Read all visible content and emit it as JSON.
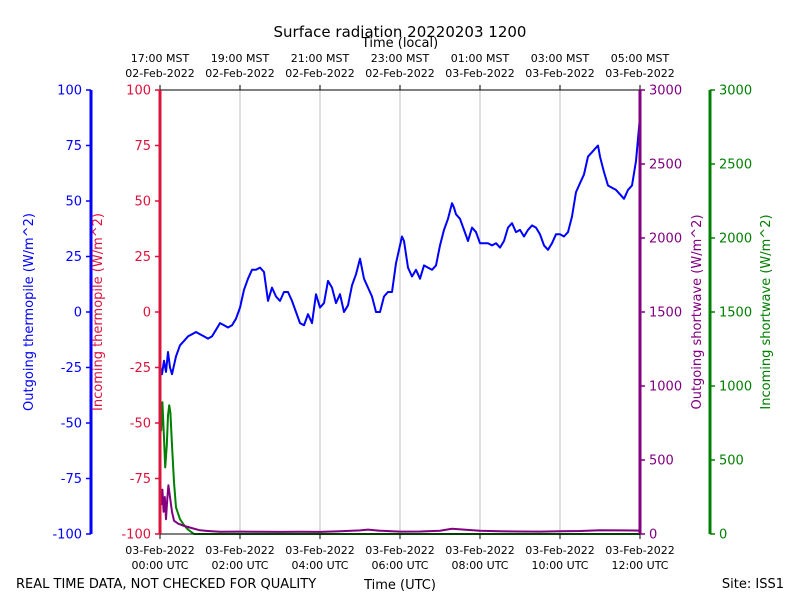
{
  "chart_data": {
    "type": "line",
    "title": "Surface radiation 20220203 1200",
    "top_xlabel": "Time (local)",
    "xlabel": "Time (UTC)",
    "footer_left": "REAL TIME DATA, NOT CHECKED FOR QUALITY",
    "footer_right": "Site: ISS1",
    "xlim_hours_utc": [
      0,
      12
    ],
    "x_ticks_bottom": [
      {
        "h": 0,
        "l1": "03-Feb-2022",
        "l2": "00:00 UTC"
      },
      {
        "h": 2,
        "l1": "03-Feb-2022",
        "l2": "02:00 UTC"
      },
      {
        "h": 4,
        "l1": "03-Feb-2022",
        "l2": "04:00 UTC"
      },
      {
        "h": 6,
        "l1": "03-Feb-2022",
        "l2": "06:00 UTC"
      },
      {
        "h": 8,
        "l1": "03-Feb-2022",
        "l2": "08:00 UTC"
      },
      {
        "h": 10,
        "l1": "03-Feb-2022",
        "l2": "10:00 UTC"
      },
      {
        "h": 12,
        "l1": "03-Feb-2022",
        "l2": "12:00 UTC"
      }
    ],
    "x_ticks_top": [
      {
        "h": 0,
        "l1": "17:00 MST",
        "l2": "02-Feb-2022"
      },
      {
        "h": 2,
        "l1": "19:00 MST",
        "l2": "02-Feb-2022"
      },
      {
        "h": 4,
        "l1": "21:00 MST",
        "l2": "02-Feb-2022"
      },
      {
        "h": 6,
        "l1": "23:00 MST",
        "l2": "02-Feb-2022"
      },
      {
        "h": 8,
        "l1": "01:00 MST",
        "l2": "03-Feb-2022"
      },
      {
        "h": 10,
        "l1": "03:00 MST",
        "l2": "03-Feb-2022"
      },
      {
        "h": 12,
        "l1": "05:00 MST",
        "l2": "03-Feb-2022"
      }
    ],
    "axes": {
      "outgoing_thermopile": {
        "label": "Outgoing thermopile (W/m^2)",
        "color": "#0000ff",
        "ylim": [
          -100,
          100
        ],
        "ticks": [
          -100,
          -75,
          -50,
          -25,
          0,
          25,
          50,
          75,
          100
        ]
      },
      "incoming_thermopile": {
        "label": "Incoming thermopile (W/m^2)",
        "color": "#dc143c",
        "ylim": [
          -100,
          100
        ],
        "ticks": [
          -100,
          -75,
          -50,
          -25,
          0,
          25,
          50,
          75,
          100
        ]
      },
      "outgoing_shortwave": {
        "label": "Outgoing shortwave (W/m^2)",
        "color": "#800080",
        "ylim": [
          0,
          3000
        ],
        "ticks": [
          0,
          500,
          1000,
          1500,
          2000,
          2500,
          3000
        ]
      },
      "incoming_shortwave": {
        "label": "Incoming shortwave (W/m^2)",
        "color": "#008000",
        "ylim": [
          0,
          3000
        ],
        "ticks": [
          0,
          500,
          1000,
          1500,
          2000,
          2500,
          3000
        ]
      }
    },
    "series": [
      {
        "name": "Outgoing thermopile",
        "axis": "outgoing_thermopile",
        "color": "#0000ff",
        "points": [
          [
            0.0,
            -24
          ],
          [
            0.05,
            -28
          ],
          [
            0.1,
            -22
          ],
          [
            0.15,
            -27
          ],
          [
            0.2,
            -18
          ],
          [
            0.25,
            -25
          ],
          [
            0.3,
            -28
          ],
          [
            0.4,
            -20
          ],
          [
            0.5,
            -15
          ],
          [
            0.6,
            -13
          ],
          [
            0.7,
            -11
          ],
          [
            0.8,
            -10
          ],
          [
            0.9,
            -9
          ],
          [
            1.0,
            -10
          ],
          [
            1.1,
            -11
          ],
          [
            1.2,
            -12
          ],
          [
            1.3,
            -11
          ],
          [
            1.4,
            -8
          ],
          [
            1.5,
            -5
          ],
          [
            1.6,
            -6
          ],
          [
            1.7,
            -7
          ],
          [
            1.8,
            -6
          ],
          [
            1.9,
            -3
          ],
          [
            2.0,
            2
          ],
          [
            2.1,
            10
          ],
          [
            2.2,
            15
          ],
          [
            2.3,
            19
          ],
          [
            2.4,
            19
          ],
          [
            2.5,
            20
          ],
          [
            2.6,
            18
          ],
          [
            2.7,
            5
          ],
          [
            2.8,
            11
          ],
          [
            2.9,
            7
          ],
          [
            3.0,
            5
          ],
          [
            3.1,
            9
          ],
          [
            3.2,
            9
          ],
          [
            3.3,
            5
          ],
          [
            3.4,
            0
          ],
          [
            3.5,
            -5
          ],
          [
            3.6,
            -6
          ],
          [
            3.7,
            -1
          ],
          [
            3.8,
            -5
          ],
          [
            3.9,
            8
          ],
          [
            4.0,
            2
          ],
          [
            4.1,
            4
          ],
          [
            4.2,
            14
          ],
          [
            4.3,
            11
          ],
          [
            4.4,
            4
          ],
          [
            4.5,
            8
          ],
          [
            4.6,
            0
          ],
          [
            4.7,
            3
          ],
          [
            4.8,
            12
          ],
          [
            4.9,
            17
          ],
          [
            5.0,
            24
          ],
          [
            5.1,
            15
          ],
          [
            5.2,
            11
          ],
          [
            5.3,
            7
          ],
          [
            5.4,
            0
          ],
          [
            5.5,
            0
          ],
          [
            5.6,
            7
          ],
          [
            5.7,
            9
          ],
          [
            5.8,
            9
          ],
          [
            5.9,
            22
          ],
          [
            6.0,
            30
          ],
          [
            6.05,
            34
          ],
          [
            6.1,
            32
          ],
          [
            6.2,
            20
          ],
          [
            6.3,
            16
          ],
          [
            6.4,
            19
          ],
          [
            6.5,
            15
          ],
          [
            6.6,
            21
          ],
          [
            6.7,
            20
          ],
          [
            6.8,
            19
          ],
          [
            6.9,
            21
          ],
          [
            7.0,
            30
          ],
          [
            7.1,
            37
          ],
          [
            7.2,
            42
          ],
          [
            7.3,
            49
          ],
          [
            7.35,
            47
          ],
          [
            7.4,
            44
          ],
          [
            7.5,
            42
          ],
          [
            7.6,
            37
          ],
          [
            7.7,
            32
          ],
          [
            7.8,
            38
          ],
          [
            7.9,
            36
          ],
          [
            8.0,
            31
          ],
          [
            8.1,
            31
          ],
          [
            8.2,
            31
          ],
          [
            8.3,
            30
          ],
          [
            8.4,
            31
          ],
          [
            8.5,
            29
          ],
          [
            8.6,
            32
          ],
          [
            8.7,
            38
          ],
          [
            8.8,
            40
          ],
          [
            8.9,
            36
          ],
          [
            9.0,
            37
          ],
          [
            9.1,
            34
          ],
          [
            9.2,
            37
          ],
          [
            9.3,
            39
          ],
          [
            9.4,
            38
          ],
          [
            9.5,
            35
          ],
          [
            9.6,
            30
          ],
          [
            9.7,
            28
          ],
          [
            9.8,
            31
          ],
          [
            9.9,
            35
          ],
          [
            10.0,
            35
          ],
          [
            10.1,
            34
          ],
          [
            10.2,
            36
          ],
          [
            10.3,
            43
          ],
          [
            10.4,
            54
          ],
          [
            10.5,
            58
          ],
          [
            10.6,
            62
          ],
          [
            10.7,
            70
          ],
          [
            10.8,
            72
          ],
          [
            10.9,
            74
          ],
          [
            10.95,
            75
          ],
          [
            11.0,
            70
          ],
          [
            11.1,
            63
          ],
          [
            11.2,
            57
          ],
          [
            11.3,
            56
          ],
          [
            11.4,
            55
          ],
          [
            11.5,
            53
          ],
          [
            11.6,
            51
          ],
          [
            11.7,
            55
          ],
          [
            11.8,
            57
          ],
          [
            11.9,
            68
          ],
          [
            12.0,
            88
          ]
        ]
      },
      {
        "name": "Incoming shortwave",
        "axis": "incoming_shortwave",
        "color": "#008000",
        "points": [
          [
            0.0,
            1050
          ],
          [
            0.03,
            700
          ],
          [
            0.06,
            890
          ],
          [
            0.1,
            650
          ],
          [
            0.13,
            450
          ],
          [
            0.17,
            600
          ],
          [
            0.2,
            800
          ],
          [
            0.23,
            870
          ],
          [
            0.26,
            820
          ],
          [
            0.3,
            600
          ],
          [
            0.35,
            350
          ],
          [
            0.4,
            180
          ],
          [
            0.5,
            100
          ],
          [
            0.6,
            60
          ],
          [
            0.7,
            30
          ],
          [
            0.8,
            10
          ],
          [
            0.85,
            0
          ],
          [
            12.0,
            0
          ]
        ]
      },
      {
        "name": "Outgoing shortwave",
        "axis": "outgoing_shortwave",
        "color": "#800080",
        "points": [
          [
            0.0,
            380
          ],
          [
            0.03,
            200
          ],
          [
            0.06,
            300
          ],
          [
            0.09,
            150
          ],
          [
            0.12,
            250
          ],
          [
            0.15,
            100
          ],
          [
            0.18,
            230
          ],
          [
            0.21,
            330
          ],
          [
            0.25,
            250
          ],
          [
            0.3,
            150
          ],
          [
            0.35,
            90
          ],
          [
            0.45,
            70
          ],
          [
            0.6,
            55
          ],
          [
            0.8,
            40
          ],
          [
            1.0,
            25
          ],
          [
            1.2,
            20
          ],
          [
            1.5,
            15
          ],
          [
            2.0,
            16
          ],
          [
            2.5,
            15
          ],
          [
            3.0,
            14
          ],
          [
            3.5,
            15
          ],
          [
            4.0,
            14
          ],
          [
            4.5,
            18
          ],
          [
            5.0,
            24
          ],
          [
            5.2,
            30
          ],
          [
            5.5,
            22
          ],
          [
            6.0,
            16
          ],
          [
            6.5,
            17
          ],
          [
            7.0,
            22
          ],
          [
            7.3,
            35
          ],
          [
            7.6,
            30
          ],
          [
            8.0,
            22
          ],
          [
            8.5,
            18
          ],
          [
            9.0,
            17
          ],
          [
            9.5,
            16
          ],
          [
            10.0,
            18
          ],
          [
            10.5,
            20
          ],
          [
            11.0,
            26
          ],
          [
            11.5,
            24
          ],
          [
            12.0,
            23
          ]
        ]
      }
    ]
  }
}
